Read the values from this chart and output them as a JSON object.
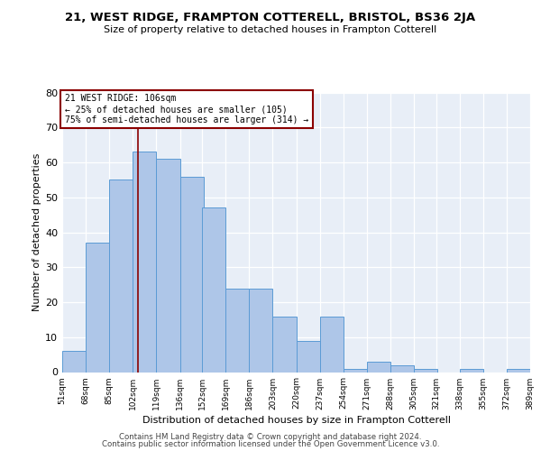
{
  "title": "21, WEST RIDGE, FRAMPTON COTTERELL, BRISTOL, BS36 2JA",
  "subtitle": "Size of property relative to detached houses in Frampton Cotterell",
  "xlabel": "Distribution of detached houses by size in Frampton Cotterell",
  "ylabel": "Number of detached properties",
  "bin_edges": [
    51,
    68,
    85,
    102,
    119,
    136,
    152,
    169,
    186,
    203,
    220,
    237,
    254,
    271,
    288,
    305,
    321,
    338,
    355,
    372,
    389
  ],
  "bar_heights": [
    6,
    37,
    55,
    63,
    61,
    56,
    47,
    24,
    24,
    16,
    9,
    16,
    1,
    3,
    2,
    1,
    0,
    1,
    0,
    1
  ],
  "xtick_labels": [
    "51sqm",
    "68sqm",
    "85sqm",
    "102sqm",
    "119sqm",
    "136sqm",
    "152sqm",
    "169sqm",
    "186sqm",
    "203sqm",
    "220sqm",
    "237sqm",
    "254sqm",
    "271sqm",
    "288sqm",
    "305sqm",
    "321sqm",
    "338sqm",
    "355sqm",
    "372sqm",
    "389sqm"
  ],
  "ylim": [
    0,
    80
  ],
  "yticks": [
    0,
    10,
    20,
    30,
    40,
    50,
    60,
    70,
    80
  ],
  "bar_color": "#aec6e8",
  "bar_edge_color": "#5b9bd5",
  "vline_x": 106,
  "vline_color": "#8b0000",
  "annotation_title": "21 WEST RIDGE: 106sqm",
  "annotation_line1": "← 25% of detached houses are smaller (105)",
  "annotation_line2": "75% of semi-detached houses are larger (314) →",
  "annotation_box_color": "#8b0000",
  "bg_color": "#e8eef7",
  "footer1": "Contains HM Land Registry data © Crown copyright and database right 2024.",
  "footer2": "Contains public sector information licensed under the Open Government Licence v3.0."
}
